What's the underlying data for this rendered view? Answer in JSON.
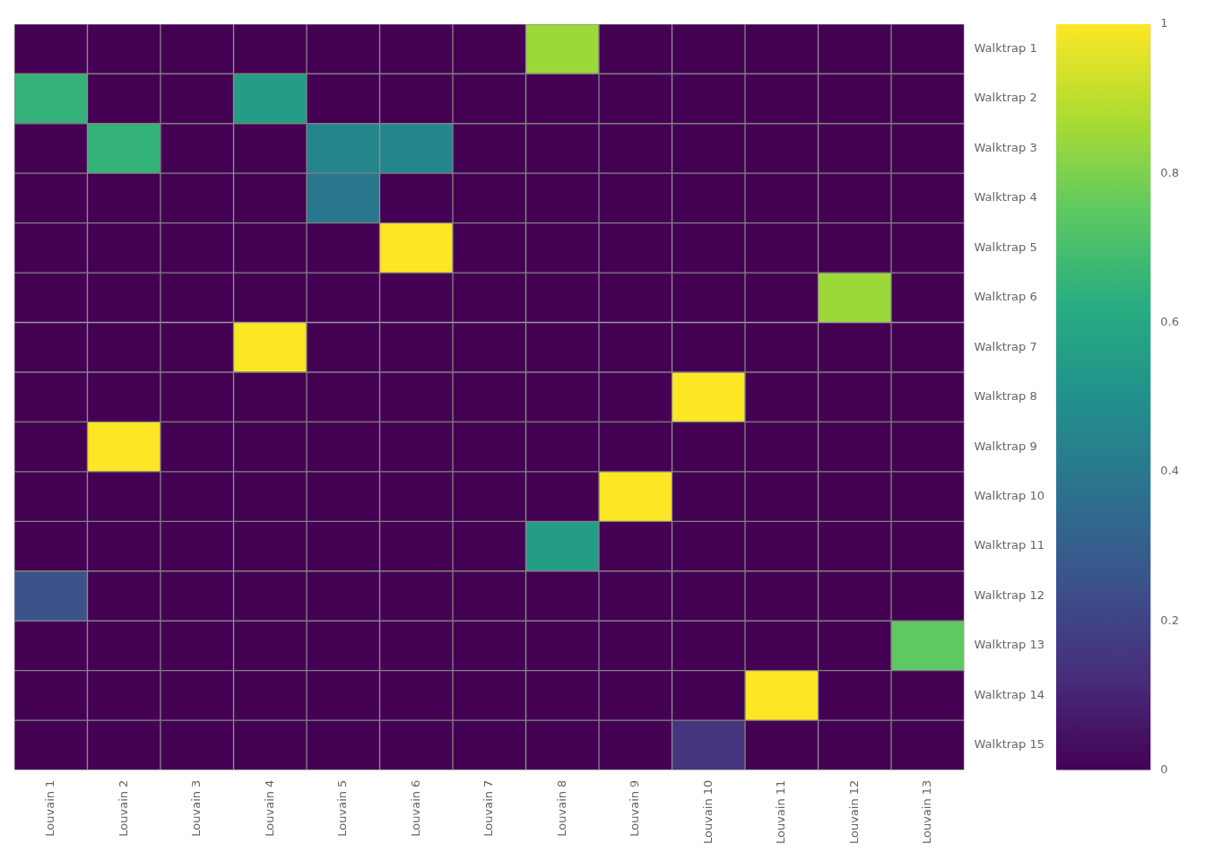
{
  "chart_data": {
    "type": "heatmap",
    "row_labels": [
      "Walktrap 1",
      "Walktrap 2",
      "Walktrap 3",
      "Walktrap 4",
      "Walktrap 5",
      "Walktrap 6",
      "Walktrap 7",
      "Walktrap 8",
      "Walktrap 9",
      "Walktrap 10",
      "Walktrap 11",
      "Walktrap 12",
      "Walktrap 13",
      "Walktrap 14",
      "Walktrap 15"
    ],
    "col_labels": [
      "Louvain 1",
      "Louvain 2",
      "Louvain 3",
      "Louvain 4",
      "Louvain 5",
      "Louvain 6",
      "Louvain 7",
      "Louvain 8",
      "Louvain 9",
      "Louvain 10",
      "Louvain 11",
      "Louvain 12",
      "Louvain 13"
    ],
    "matrix": [
      [
        0.0,
        0.0,
        0.0,
        0.0,
        0.0,
        0.0,
        0.0,
        0.85,
        0.0,
        0.0,
        0.0,
        0.0,
        0.0
      ],
      [
        0.65,
        0.0,
        0.0,
        0.55,
        0.0,
        0.0,
        0.0,
        0.0,
        0.0,
        0.0,
        0.0,
        0.0,
        0.0
      ],
      [
        0.0,
        0.65,
        0.0,
        0.0,
        0.45,
        0.45,
        0.0,
        0.0,
        0.0,
        0.0,
        0.0,
        0.0,
        0.0
      ],
      [
        0.0,
        0.0,
        0.0,
        0.0,
        0.4,
        0.0,
        0.0,
        0.0,
        0.0,
        0.0,
        0.0,
        0.0,
        0.0
      ],
      [
        0.0,
        0.0,
        0.0,
        0.0,
        0.0,
        1.0,
        0.0,
        0.0,
        0.0,
        0.0,
        0.0,
        0.0,
        0.0
      ],
      [
        0.0,
        0.0,
        0.0,
        0.0,
        0.0,
        0.0,
        0.0,
        0.0,
        0.0,
        0.0,
        0.0,
        0.85,
        0.0
      ],
      [
        0.0,
        0.0,
        0.0,
        1.0,
        0.0,
        0.0,
        0.0,
        0.0,
        0.0,
        0.0,
        0.0,
        0.0,
        0.0
      ],
      [
        0.0,
        0.0,
        0.0,
        0.0,
        0.0,
        0.0,
        0.0,
        0.0,
        0.0,
        1.0,
        0.0,
        0.0,
        0.0
      ],
      [
        0.0,
        1.0,
        0.0,
        0.0,
        0.0,
        0.0,
        0.0,
        0.0,
        0.0,
        0.0,
        0.0,
        0.0,
        0.0
      ],
      [
        0.0,
        0.0,
        0.0,
        0.0,
        0.0,
        0.0,
        0.0,
        0.0,
        1.0,
        0.0,
        0.0,
        0.0,
        0.0
      ],
      [
        0.0,
        0.0,
        0.0,
        0.0,
        0.0,
        0.0,
        0.0,
        0.55,
        0.0,
        0.0,
        0.0,
        0.0,
        0.0
      ],
      [
        0.25,
        0.0,
        0.0,
        0.0,
        0.0,
        0.0,
        0.0,
        0.0,
        0.0,
        0.0,
        0.0,
        0.0,
        0.0
      ],
      [
        0.0,
        0.0,
        0.0,
        0.0,
        0.0,
        0.0,
        0.0,
        0.0,
        0.0,
        0.0,
        0.0,
        0.0,
        0.75
      ],
      [
        0.0,
        0.0,
        0.0,
        0.0,
        0.0,
        0.0,
        0.0,
        0.0,
        0.0,
        0.0,
        1.0,
        0.0,
        0.0
      ],
      [
        0.0,
        0.0,
        0.0,
        0.0,
        0.0,
        0.0,
        0.0,
        0.0,
        0.0,
        0.15,
        0.0,
        0.0,
        0.0
      ]
    ],
    "colorbar_range": [
      0,
      1
    ],
    "colorbar_ticks": [
      0,
      0.2,
      0.4,
      0.6,
      0.8,
      1.0
    ],
    "grid": true
  }
}
